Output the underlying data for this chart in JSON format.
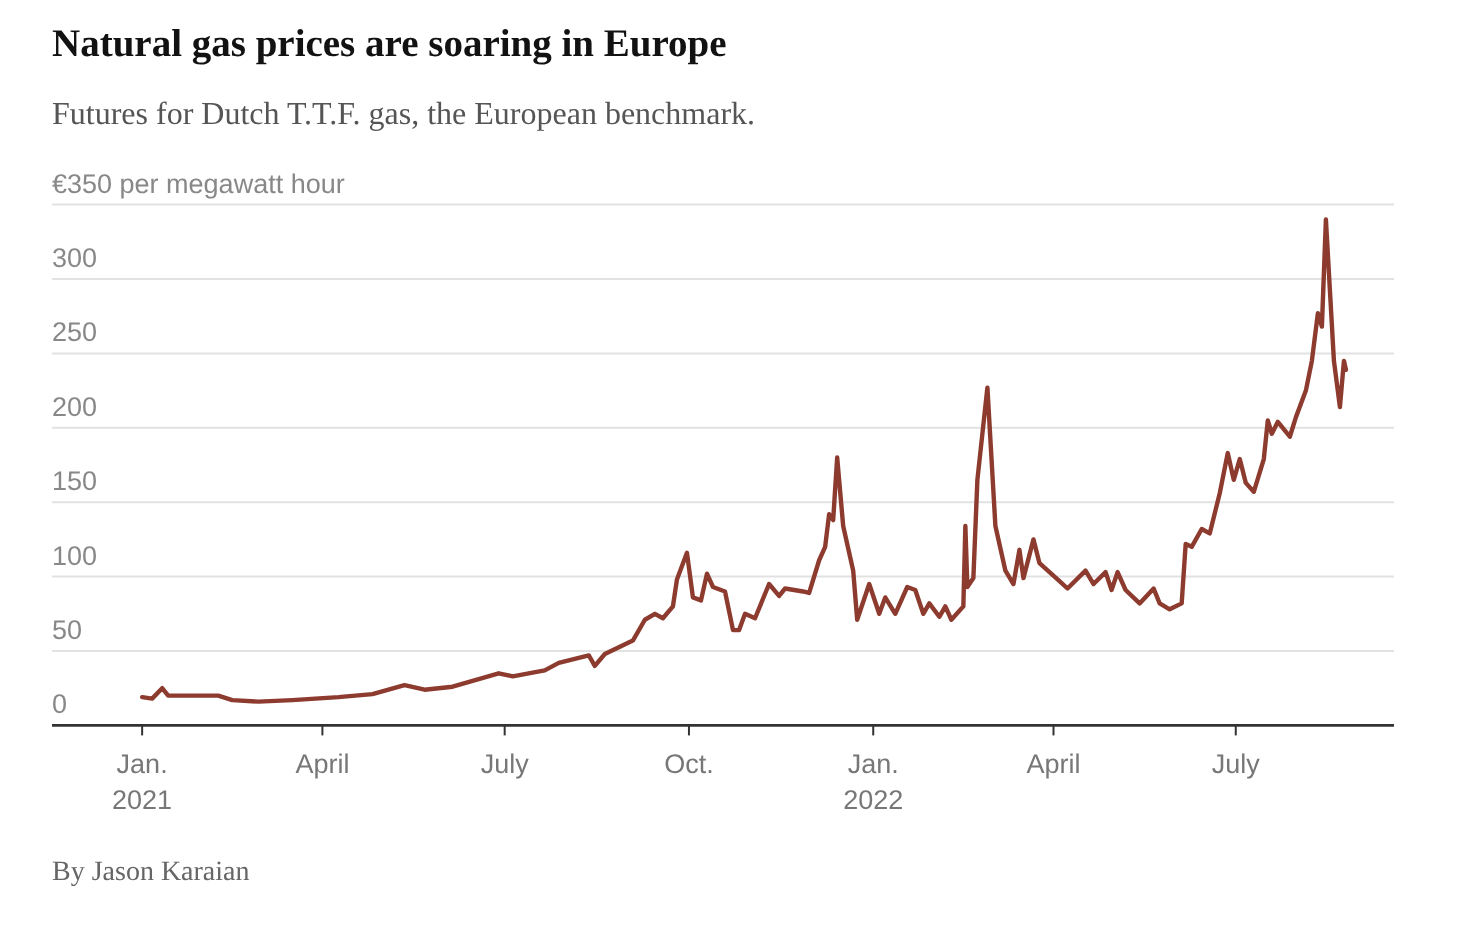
{
  "chart_data": {
    "type": "line",
    "title": "Natural gas prices are soaring in Europe",
    "subtitle": "Futures for Dutch T.T.F. gas, the European benchmark.",
    "annotations": [
      "By Jason Karaian"
    ],
    "x": [
      "2021-01-01",
      "2021-01-06",
      "2021-01-11",
      "2021-01-14",
      "2021-01-29",
      "2021-02-08",
      "2021-02-15",
      "2021-02-28",
      "2021-03-17",
      "2021-04-09",
      "2021-04-26",
      "2021-05-12",
      "2021-05-22",
      "2021-06-05",
      "2021-06-28",
      "2021-07-05",
      "2021-07-21",
      "2021-07-28",
      "2021-08-12",
      "2021-08-15",
      "2021-08-20",
      "2021-09-03",
      "2021-09-09",
      "2021-09-14",
      "2021-09-18",
      "2021-09-23",
      "2021-09-25",
      "2021-09-30",
      "2021-10-03",
      "2021-10-07",
      "2021-10-10",
      "2021-10-13",
      "2021-10-19",
      "2021-10-23",
      "2021-10-26",
      "2021-10-29",
      "2021-11-03",
      "2021-11-10",
      "2021-11-15",
      "2021-11-18",
      "2021-11-27",
      "2021-11-30",
      "2021-12-05",
      "2021-12-08",
      "2021-12-10",
      "2021-12-12",
      "2021-12-14",
      "2021-12-17",
      "2021-12-22",
      "2021-12-24",
      "2021-12-30",
      "2022-01-04",
      "2022-01-07",
      "2022-01-12",
      "2022-01-18",
      "2022-01-22",
      "2022-01-26",
      "2022-01-29",
      "2022-02-03",
      "2022-02-06",
      "2022-02-09",
      "2022-02-15",
      "2022-02-16",
      "2022-02-17",
      "2022-02-20",
      "2022-02-22",
      "2022-02-27",
      "2022-03-03",
      "2022-03-08",
      "2022-03-12",
      "2022-03-15",
      "2022-03-17",
      "2022-03-22",
      "2022-03-25",
      "2022-04-04",
      "2022-04-08",
      "2022-04-17",
      "2022-04-21",
      "2022-04-27",
      "2022-04-30",
      "2022-05-03",
      "2022-05-07",
      "2022-05-14",
      "2022-05-21",
      "2022-05-24",
      "2022-05-29",
      "2022-06-04",
      "2022-06-06",
      "2022-06-09",
      "2022-06-14",
      "2022-06-18",
      "2022-06-23",
      "2022-06-27",
      "2022-06-30",
      "2022-07-03",
      "2022-07-06",
      "2022-07-10",
      "2022-07-15",
      "2022-07-17",
      "2022-07-19",
      "2022-07-22",
      "2022-07-28",
      "2022-07-31",
      "2022-08-05",
      "2022-08-08",
      "2022-08-11",
      "2022-08-13",
      "2022-08-15",
      "2022-08-19",
      "2022-08-22",
      "2022-08-24",
      "2022-08-25"
    ],
    "series": [
      {
        "color": "#8c3b2e",
        "values": [
          19,
          18,
          25,
          20,
          20,
          20,
          17,
          16,
          17,
          19,
          21,
          27,
          24,
          26,
          35,
          33,
          37,
          42,
          47,
          40,
          48,
          57,
          71,
          75,
          72,
          80,
          98,
          116,
          86,
          84,
          102,
          93,
          90,
          64,
          64,
          75,
          72,
          95,
          87,
          92,
          90,
          89,
          111,
          120,
          142,
          138,
          180,
          134,
          104,
          71,
          95,
          75,
          86,
          75,
          93,
          91,
          75,
          82,
          73,
          80,
          71,
          80,
          134,
          93,
          99,
          165,
          227,
          134,
          104,
          95,
          118,
          99,
          125,
          109,
          97,
          92,
          104,
          95,
          103,
          91,
          103,
          91,
          82,
          92,
          82,
          78,
          82,
          122,
          120,
          132,
          129,
          156,
          183,
          165,
          179,
          163,
          157,
          179,
          205,
          196,
          204,
          194,
          207,
          225,
          245,
          277,
          268,
          340,
          245,
          214,
          245,
          239
        ]
      }
    ],
    "xlim": [
      "2020-11-17",
      "2022-09-18"
    ],
    "xticks": [
      {
        "value": "2021-01-01",
        "label": "Jan.\n2021"
      },
      {
        "value": "2021-04-01",
        "label": "April"
      },
      {
        "value": "2021-07-01",
        "label": "July"
      },
      {
        "value": "2021-10-01",
        "label": "Oct."
      },
      {
        "value": "2022-01-01",
        "label": "Jan.\n2022"
      },
      {
        "value": "2022-04-01",
        "label": "April"
      },
      {
        "value": "2022-07-01",
        "label": "July"
      }
    ],
    "ylim": [
      0,
      350
    ],
    "yticks": [
      0,
      50,
      100,
      150,
      200,
      250,
      300,
      {
        "value": 350,
        "label": null
      }
    ],
    "ylabel": "€350 per megawatt hour",
    "grid": "y",
    "marker": "none",
    "line_style": "solid"
  }
}
